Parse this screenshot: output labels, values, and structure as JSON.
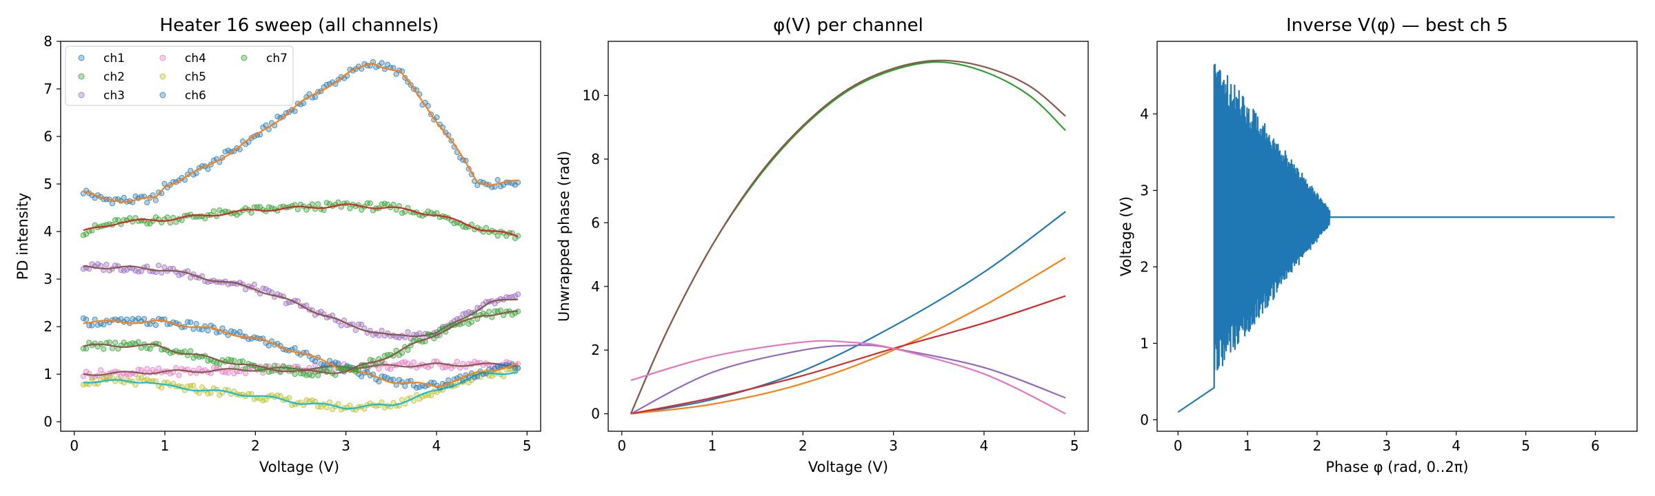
{
  "chart_data": [
    {
      "type": "scatter",
      "title": "Heater 16 sweep (all channels)",
      "xlabel": "Voltage (V)",
      "ylabel": "PD intensity",
      "xlim": [
        -0.15,
        5.15
      ],
      "ylim": [
        -0.2,
        8.0
      ],
      "xticks": [
        0,
        1,
        2,
        3,
        4,
        5
      ],
      "yticks": [
        0,
        1,
        2,
        3,
        4,
        5,
        6,
        7,
        8
      ],
      "legend_position": "top-left",
      "legend_columns": 3,
      "x_range": [
        0.1,
        4.9
      ],
      "series": [
        {
          "name": "ch1",
          "color": "#1f77b4",
          "fit_color": "#ff7f0e",
          "values": [
            [
              0.1,
              4.85
            ],
            [
              0.3,
              4.68
            ],
            [
              0.6,
              4.65
            ],
            [
              0.9,
              4.7
            ],
            [
              1.0,
              4.95
            ],
            [
              1.5,
              5.4
            ],
            [
              2.0,
              6.0
            ],
            [
              2.5,
              6.7
            ],
            [
              3.0,
              7.3
            ],
            [
              3.3,
              7.55
            ],
            [
              3.6,
              7.35
            ],
            [
              3.9,
              6.6
            ],
            [
              4.2,
              5.8
            ],
            [
              4.45,
              5.05
            ],
            [
              4.6,
              5.0
            ],
            [
              4.9,
              5.05
            ]
          ]
        },
        {
          "name": "ch2",
          "color": "#2ca02c",
          "fit_color": "#d62728",
          "values": [
            [
              0.1,
              4.0
            ],
            [
              0.5,
              4.2
            ],
            [
              1.0,
              4.25
            ],
            [
              1.5,
              4.35
            ],
            [
              2.0,
              4.45
            ],
            [
              2.5,
              4.5
            ],
            [
              3.0,
              4.55
            ],
            [
              3.5,
              4.5
            ],
            [
              4.0,
              4.35
            ],
            [
              4.5,
              4.05
            ],
            [
              4.9,
              3.9
            ]
          ]
        },
        {
          "name": "ch3",
          "color": "#9467bd",
          "fit_color": "#8c564b",
          "values": [
            [
              0.1,
              3.25
            ],
            [
              0.5,
              3.25
            ],
            [
              1.0,
              3.2
            ],
            [
              1.5,
              3.0
            ],
            [
              2.0,
              2.8
            ],
            [
              2.5,
              2.45
            ],
            [
              3.0,
              2.05
            ],
            [
              3.5,
              1.8
            ],
            [
              4.0,
              1.85
            ],
            [
              4.3,
              2.2
            ],
            [
              4.6,
              2.5
            ],
            [
              4.9,
              2.6
            ]
          ]
        },
        {
          "name": "ch4",
          "color": "#e377c2",
          "fit_color": "#8c564b",
          "values": [
            [
              0.1,
              1.0
            ],
            [
              1.0,
              1.05
            ],
            [
              2.0,
              1.1
            ],
            [
              3.0,
              1.15
            ],
            [
              4.0,
              1.2
            ],
            [
              4.9,
              1.2
            ]
          ]
        },
        {
          "name": "ch5",
          "color": "#bcbd22",
          "fit_color": "#17becf",
          "values": [
            [
              0.1,
              0.85
            ],
            [
              0.8,
              0.85
            ],
            [
              1.0,
              0.75
            ],
            [
              1.5,
              0.65
            ],
            [
              2.0,
              0.55
            ],
            [
              2.5,
              0.4
            ],
            [
              3.0,
              0.3
            ],
            [
              3.5,
              0.35
            ],
            [
              4.0,
              0.65
            ],
            [
              4.5,
              1.0
            ],
            [
              4.9,
              1.05
            ]
          ]
        },
        {
          "name": "ch6",
          "color": "#1f77b4",
          "fit_color": "#ff7f0e",
          "values": [
            [
              0.1,
              2.1
            ],
            [
              0.5,
              2.1
            ],
            [
              1.0,
              2.1
            ],
            [
              1.5,
              1.95
            ],
            [
              2.0,
              1.75
            ],
            [
              2.5,
              1.45
            ],
            [
              3.0,
              1.1
            ],
            [
              3.5,
              0.85
            ],
            [
              4.0,
              0.75
            ],
            [
              4.5,
              1.05
            ],
            [
              4.9,
              1.2
            ]
          ]
        },
        {
          "name": "ch7",
          "color": "#2ca02c",
          "fit_color": "#8c564b",
          "values": [
            [
              0.1,
              1.6
            ],
            [
              0.5,
              1.6
            ],
            [
              0.9,
              1.6
            ],
            [
              1.2,
              1.45
            ],
            [
              1.6,
              1.3
            ],
            [
              2.0,
              1.15
            ],
            [
              2.5,
              1.05
            ],
            [
              3.0,
              1.05
            ],
            [
              3.5,
              1.4
            ],
            [
              4.0,
              1.85
            ],
            [
              4.5,
              2.25
            ],
            [
              4.9,
              2.3
            ]
          ]
        }
      ]
    },
    {
      "type": "line",
      "title": "φ(V) per channel",
      "xlabel": "Voltage (V)",
      "ylabel": "Unwrapped phase (rad)",
      "xlim": [
        -0.15,
        5.15
      ],
      "ylim": [
        -0.55,
        11.7
      ],
      "xticks": [
        0,
        1,
        2,
        3,
        4,
        5
      ],
      "yticks": [
        0,
        2,
        4,
        6,
        8,
        10
      ],
      "series": [
        {
          "color": "#1f77b4",
          "values": [
            [
              0.1,
              0.0
            ],
            [
              1.0,
              0.45
            ],
            [
              2.0,
              1.35
            ],
            [
              3.0,
              2.75
            ],
            [
              4.0,
              4.45
            ],
            [
              4.9,
              6.35
            ]
          ]
        },
        {
          "color": "#ff7f0e",
          "values": [
            [
              0.1,
              0.0
            ],
            [
              1.0,
              0.3
            ],
            [
              2.0,
              0.95
            ],
            [
              3.0,
              2.0
            ],
            [
              4.0,
              3.4
            ],
            [
              4.9,
              4.9
            ]
          ]
        },
        {
          "color": "#2ca02c",
          "values": [
            [
              0.1,
              0.0
            ],
            [
              0.5,
              2.6
            ],
            [
              1.0,
              5.3
            ],
            [
              1.5,
              7.4
            ],
            [
              2.0,
              9.0
            ],
            [
              2.5,
              10.15
            ],
            [
              3.0,
              10.8
            ],
            [
              3.5,
              11.05
            ],
            [
              4.0,
              10.75
            ],
            [
              4.5,
              10.0
            ],
            [
              4.9,
              8.9
            ]
          ]
        },
        {
          "color": "#d62728",
          "values": [
            [
              0.1,
              0.0
            ],
            [
              1.0,
              0.5
            ],
            [
              2.0,
              1.2
            ],
            [
              3.0,
              2.05
            ],
            [
              4.0,
              2.85
            ],
            [
              4.9,
              3.7
            ]
          ]
        },
        {
          "color": "#9467bd",
          "values": [
            [
              0.1,
              0.0
            ],
            [
              1.0,
              1.3
            ],
            [
              2.0,
              2.0
            ],
            [
              2.6,
              2.15
            ],
            [
              3.0,
              2.05
            ],
            [
              4.0,
              1.45
            ],
            [
              4.9,
              0.5
            ]
          ]
        },
        {
          "color": "#8c564b",
          "values": [
            [
              0.1,
              0.0
            ],
            [
              0.5,
              2.6
            ],
            [
              1.0,
              5.3
            ],
            [
              1.5,
              7.45
            ],
            [
              2.0,
              9.05
            ],
            [
              2.5,
              10.2
            ],
            [
              3.0,
              10.85
            ],
            [
              3.5,
              11.1
            ],
            [
              4.0,
              10.9
            ],
            [
              4.5,
              10.3
            ],
            [
              4.9,
              9.35
            ]
          ]
        },
        {
          "color": "#e377c2",
          "values": [
            [
              0.1,
              1.05
            ],
            [
              1.0,
              1.8
            ],
            [
              2.0,
              2.25
            ],
            [
              2.5,
              2.25
            ],
            [
              3.0,
              2.05
            ],
            [
              4.0,
              1.25
            ],
            [
              4.9,
              0.0
            ]
          ]
        }
      ]
    },
    {
      "type": "line",
      "title": "Inverse V(φ) — best ch 5",
      "xlabel": "Phase φ (rad, 0..2π)",
      "ylabel": "Voltage (V)",
      "xlim": [
        -0.3,
        6.6
      ],
      "ylim": [
        -0.15,
        4.95
      ],
      "xticks": [
        0,
        1,
        2,
        3,
        4,
        5,
        6
      ],
      "yticks": [
        0,
        1,
        2,
        3,
        4
      ],
      "series": [
        {
          "color": "#1f77b4",
          "segments": [
            {
              "kind": "line",
              "values": [
                [
                  0.0,
                  0.1
                ],
                [
                  0.52,
                  0.42
                ]
              ]
            },
            {
              "kind": "oscillation",
              "x_from": 0.52,
              "x_to": 2.18,
              "center": 2.65,
              "amplitude_start": 2.1,
              "amplitude_end": 0.1
            },
            {
              "kind": "line",
              "values": [
                [
                  2.18,
                  2.65
                ],
                [
                  6.28,
                  2.65
                ]
              ]
            }
          ]
        }
      ]
    }
  ]
}
